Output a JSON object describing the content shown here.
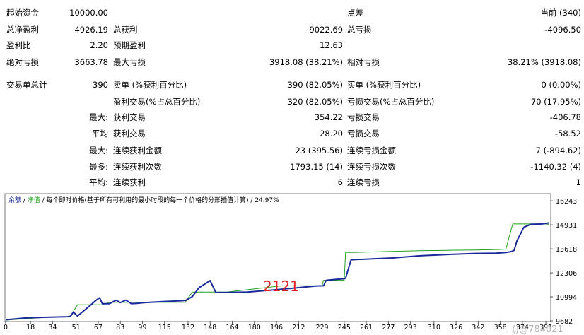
{
  "report": {
    "start_balance": {
      "label": "起始资金",
      "value": "10000.00"
    },
    "spread": {
      "label": "点差",
      "value": "当前 (340)"
    },
    "total_net_profit": {
      "label": "总净盈利",
      "value": "4926.19"
    },
    "gross_profit": {
      "label": "总获利",
      "value": "9022.69"
    },
    "gross_loss": {
      "label": "总亏损",
      "value": "-4096.50"
    },
    "profit_factor": {
      "label": "盈利比",
      "value": "2.20"
    },
    "expected_payoff": {
      "label": "预期盈利",
      "value": "12.63"
    },
    "absolute_drawdown": {
      "label": "绝对亏损",
      "value": "3663.78"
    },
    "maximal_drawdown": {
      "label": "最大亏损",
      "value": "3918.08 (38.21%)"
    },
    "relative_drawdown": {
      "label": "相对亏损",
      "value": "38.21% (3918.08)"
    },
    "total_trades": {
      "label": "交易单总计",
      "value": "390"
    },
    "short_positions": {
      "label": "卖单 (%获利百分比)",
      "value": "390 (82.05%)"
    },
    "long_positions": {
      "label": "买单 (%获利百分比)",
      "value": "0 (0.00%)"
    },
    "profit_trades": {
      "label": "盈利交易(%占总百分比)",
      "value": "320 (82.05%)"
    },
    "loss_trades": {
      "label": "亏损交易(%占总百分比)",
      "value": "70 (17.95%)"
    },
    "largest_prefix": "最大:",
    "largest_profit": {
      "label": "获利交易",
      "value": "354.22"
    },
    "largest_loss": {
      "label": "亏损交易",
      "value": "-406.78"
    },
    "average_prefix": "平均",
    "average_profit": {
      "label": "获利交易",
      "value": "28.20"
    },
    "average_loss": {
      "label": "亏损交易",
      "value": "-58.52"
    },
    "max_prefix": "最大:",
    "max_consec_wins": {
      "label": "连续获利金额",
      "value": "23 (395.56)"
    },
    "max_consec_losses": {
      "label": "连续亏损金额",
      "value": "7 (-894.62)"
    },
    "maximal_prefix": "最多:",
    "maximal_consec_profit": {
      "label": "连续获利次数",
      "value": "1793.15 (14)"
    },
    "maximal_consec_loss": {
      "label": "连续亏损次数",
      "value": "-1140.32 (4)"
    },
    "avg_prefix": "平均:",
    "avg_consec_wins": {
      "label": "连续获利",
      "value": "6"
    },
    "avg_consec_losses": {
      "label": "连续亏损",
      "value": "1"
    }
  },
  "chart_header": {
    "balance": "余额",
    "sep1": " / ",
    "equity": "净值",
    "rest": " / 每个即时价格(基于所有可利用的最小时段的每一个价格的分形插值计算) / 24.97%"
  },
  "colors": {
    "balance": "#1a2a9a",
    "equity": "#22a020"
  },
  "overlay_number": "2121",
  "watermark": "⟨)@784021",
  "chart_data": {
    "type": "line",
    "title": "",
    "xlabel": "",
    "ylabel": "",
    "x_ticks": [
      "0",
      "18",
      "34",
      "51",
      "67",
      "83",
      "99",
      "115",
      "132",
      "148",
      "164",
      "180",
      "196",
      "212",
      "229",
      "245",
      "261",
      "277",
      "293",
      "310",
      "326",
      "342",
      "358",
      "374",
      "391"
    ],
    "y_ticks": [
      "16243",
      "14931",
      "13618",
      "12306",
      "10994",
      "9682"
    ],
    "xlim": [
      0,
      394
    ],
    "ylim": [
      9682,
      16600
    ],
    "series": [
      {
        "name": "余额",
        "x": [
          0,
          15,
          30,
          45,
          47,
          49,
          52,
          60,
          65,
          67,
          68,
          70,
          75,
          80,
          83,
          87,
          91,
          95,
          100,
          115,
          130,
          135,
          140,
          148,
          152,
          160,
          175,
          195,
          225,
          230,
          232,
          240,
          245,
          246,
          250,
          280,
          300,
          320,
          340,
          355,
          362,
          366,
          368,
          370,
          375,
          380,
          388,
          390,
          393
        ],
        "y": [
          9740,
          9850,
          9880,
          9910,
          9940,
          10160,
          9950,
          10450,
          10780,
          10890,
          10940,
          10620,
          10620,
          10810,
          10680,
          10820,
          10620,
          10640,
          10680,
          10740,
          10790,
          11000,
          11500,
          11880,
          11240,
          11230,
          11260,
          11380,
          11590,
          11600,
          11900,
          11960,
          11980,
          12020,
          13020,
          13120,
          13240,
          13310,
          13370,
          13380,
          13420,
          13470,
          13540,
          14050,
          14800,
          14960,
          14980,
          15000,
          15040
        ]
      },
      {
        "name": "净值",
        "x": [
          0,
          30,
          45,
          47,
          52,
          60,
          67,
          70,
          75,
          80,
          95,
          130,
          135,
          148,
          160,
          200,
          229,
          230,
          240,
          245,
          246,
          250,
          280,
          300,
          320,
          340,
          355,
          362,
          367,
          375,
          390,
          393
        ],
        "y": [
          9720,
          9880,
          9910,
          9960,
          10560,
          10560,
          10560,
          10560,
          10700,
          10700,
          10700,
          10700,
          11260,
          11260,
          11260,
          11600,
          11600,
          11900,
          11900,
          11900,
          13420,
          13420,
          13480,
          13520,
          13540,
          13560,
          13580,
          13600,
          14980,
          14980,
          14980,
          14960
        ]
      }
    ]
  }
}
